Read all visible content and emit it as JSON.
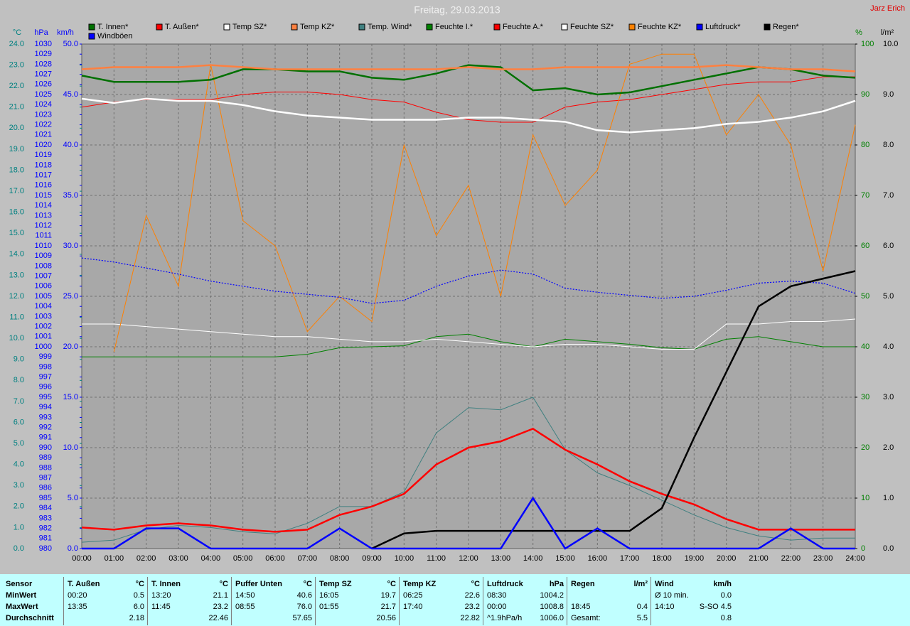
{
  "author": "Jarz Erich",
  "chart_data": {
    "type": "line",
    "title": "Freitag, 29.03.2013",
    "grid": true,
    "x": [
      "00:00",
      "01:00",
      "02:00",
      "03:00",
      "04:00",
      "05:00",
      "06:00",
      "07:00",
      "08:00",
      "09:00",
      "10:00",
      "11:00",
      "12:00",
      "13:00",
      "14:00",
      "15:00",
      "16:00",
      "17:00",
      "18:00",
      "19:00",
      "20:00",
      "21:00",
      "22:00",
      "23:00",
      "24:00"
    ],
    "axes": {
      "y": {
        "label": "°C",
        "color": "#008080",
        "lim": [
          0,
          24
        ],
        "ticks": [
          {
            "value": 0,
            "label": "0.0"
          },
          {
            "value": 1,
            "label": "1.0"
          },
          {
            "value": 2,
            "label": "2.0"
          },
          {
            "value": 3,
            "label": "3.0"
          },
          {
            "value": 4,
            "label": "4.0"
          },
          {
            "value": 5,
            "label": "5.0"
          },
          {
            "value": 6,
            "label": "6.0"
          },
          {
            "value": 7,
            "label": "7.0"
          },
          {
            "value": 8,
            "label": "8.0"
          },
          {
            "value": 9,
            "label": "9.0"
          },
          {
            "value": 10,
            "label": "10.0"
          },
          {
            "value": 11,
            "label": "11.0"
          },
          {
            "value": 12,
            "label": "12.0"
          },
          {
            "value": 13,
            "label": "13.0"
          },
          {
            "value": 14,
            "label": "14.0"
          },
          {
            "value": 15,
            "label": "15.0"
          },
          {
            "value": 16,
            "label": "16.0"
          },
          {
            "value": 17,
            "label": "17.0"
          },
          {
            "value": 18,
            "label": "18.0"
          },
          {
            "value": 19,
            "label": "19.0"
          },
          {
            "value": 20,
            "label": "20.0"
          },
          {
            "value": 21,
            "label": "21.0"
          },
          {
            "value": 22,
            "label": "22.0"
          },
          {
            "value": 23,
            "label": "23.0"
          },
          {
            "value": 24,
            "label": "24.0"
          }
        ]
      },
      "y3": {
        "label": "hPa",
        "color": "#0000ff",
        "lim": [
          980,
          1030
        ],
        "ticks": [
          980,
          981,
          982,
          983,
          984,
          985,
          986,
          987,
          988,
          989,
          990,
          991,
          992,
          993,
          994,
          995,
          996,
          997,
          998,
          999,
          1000,
          1001,
          1002,
          1003,
          1004,
          1005,
          1006,
          1007,
          1008,
          1009,
          1010,
          1011,
          1012,
          1013,
          1014,
          1015,
          1016,
          1017,
          1018,
          1019,
          1020,
          1021,
          1022,
          1023,
          1024,
          1025,
          1026,
          1027,
          1028,
          1029,
          1030
        ]
      },
      "y4": {
        "label": "km/h",
        "color": "#0000ff",
        "lim": [
          0,
          50
        ],
        "ticks": [
          {
            "value": 0,
            "label": "0.0"
          },
          {
            "value": 5,
            "label": "5.0"
          },
          {
            "value": 10,
            "label": "10.0"
          },
          {
            "value": 15,
            "label": "15.0"
          },
          {
            "value": 20,
            "label": "20.0"
          },
          {
            "value": 25,
            "label": "25.0"
          },
          {
            "value": 30,
            "label": "30.0"
          },
          {
            "value": 35,
            "label": "35.0"
          },
          {
            "value": 40,
            "label": "40.0"
          },
          {
            "value": 45,
            "label": "45.0"
          },
          {
            "value": 50,
            "label": "50.0"
          }
        ]
      },
      "y2": {
        "label": "%",
        "color": "#008000",
        "lim": [
          0,
          100
        ],
        "ticks": [
          0,
          10,
          20,
          30,
          40,
          50,
          60,
          70,
          80,
          90,
          100
        ]
      },
      "y5": {
        "label": "l/m²",
        "color": "#000000",
        "lim": [
          0,
          10
        ],
        "ticks": [
          {
            "value": 0,
            "label": "0.0"
          },
          {
            "value": 1,
            "label": "1.0"
          },
          {
            "value": 2,
            "label": "2.0"
          },
          {
            "value": 3,
            "label": "3.0"
          },
          {
            "value": 4,
            "label": "4.0"
          },
          {
            "value": 5,
            "label": "5.0"
          },
          {
            "value": 6,
            "label": "6.0"
          },
          {
            "value": 7,
            "label": "7.0"
          },
          {
            "value": 8,
            "label": "8.0"
          },
          {
            "value": 9,
            "label": "9.0"
          },
          {
            "value": 10,
            "label": "10.0"
          }
        ]
      }
    },
    "series": [
      {
        "name": "T. Innen*",
        "color": "#007000",
        "axis": "y",
        "style": "thick",
        "values": [
          22.5,
          22.2,
          22.2,
          22.2,
          22.3,
          22.8,
          22.8,
          22.7,
          22.7,
          22.4,
          22.3,
          22.6,
          23.0,
          22.9,
          21.8,
          21.9,
          21.6,
          21.7,
          22.0,
          22.3,
          22.6,
          22.9,
          22.8,
          22.5,
          22.4
        ]
      },
      {
        "name": "T. Außen*",
        "color": "#ff0000",
        "axis": "y",
        "style": "thick",
        "values": [
          1.0,
          0.9,
          1.1,
          1.2,
          1.1,
          0.9,
          0.8,
          0.9,
          1.6,
          2.0,
          2.6,
          4.0,
          4.8,
          5.1,
          5.7,
          4.7,
          4.0,
          3.2,
          2.6,
          2.1,
          1.4,
          0.9,
          0.9,
          0.9,
          0.9
        ]
      },
      {
        "name": "Temp SZ*",
        "color": "#ffffff",
        "axis": "y",
        "style": "thick",
        "values": [
          21.4,
          21.2,
          21.4,
          21.3,
          21.3,
          21.1,
          20.8,
          20.6,
          20.5,
          20.4,
          20.4,
          20.4,
          20.5,
          20.5,
          20.4,
          20.3,
          19.9,
          19.8,
          19.9,
          20.0,
          20.2,
          20.3,
          20.5,
          20.8,
          21.3
        ]
      },
      {
        "name": "Temp KZ*",
        "color": "#ff8040",
        "axis": "y",
        "style": "thick",
        "values": [
          22.8,
          22.9,
          22.9,
          22.9,
          23.0,
          22.9,
          22.8,
          22.8,
          22.8,
          22.8,
          22.8,
          22.8,
          22.9,
          22.8,
          22.8,
          22.9,
          22.9,
          22.9,
          22.9,
          22.9,
          23.0,
          22.9,
          22.8,
          22.8,
          22.7
        ]
      },
      {
        "name": "Temp. Wind*",
        "color": "#408080",
        "axis": "y",
        "style": "thin",
        "values": [
          0.3,
          0.4,
          0.9,
          1.1,
          1.0,
          0.8,
          0.7,
          1.2,
          2.0,
          2.0,
          2.7,
          5.5,
          6.7,
          6.6,
          7.2,
          4.7,
          3.6,
          3.0,
          2.3,
          1.6,
          1.0,
          0.6,
          0.4,
          0.5,
          0.5
        ]
      },
      {
        "name": "Feuchte I.*",
        "color": "#008000",
        "axis": "y2",
        "style": "thin",
        "values": [
          38,
          38,
          38,
          38,
          38,
          38,
          38,
          38.5,
          39.8,
          40,
          40.2,
          42,
          42.5,
          41,
          40,
          41.5,
          41,
          40.5,
          39.8,
          39.5,
          41.5,
          42,
          41,
          40,
          40
        ]
      },
      {
        "name": "Feuchte A.*",
        "color": "#ff0000",
        "axis": "y2",
        "style": "thin",
        "values": [
          87.5,
          88.5,
          89,
          89,
          89,
          90,
          90.5,
          90.5,
          90,
          89,
          88.5,
          86.5,
          85,
          84.5,
          84.5,
          87.5,
          88.5,
          89,
          90,
          91,
          92,
          92.5,
          92.5,
          93.5,
          93.5
        ]
      },
      {
        "name": "Feuchte SZ*",
        "color": "#ffffff",
        "axis": "y2",
        "style": "thin",
        "values": [
          44.5,
          44.5,
          44,
          43.5,
          43,
          42.5,
          42,
          42,
          41.5,
          41,
          41,
          41.5,
          41,
          40.5,
          40,
          40.5,
          40.5,
          40,
          39.5,
          39.5,
          44.5,
          44.5,
          45,
          45,
          45.5
        ]
      },
      {
        "name": "Feuchte KZ*",
        "color": "#ff8000",
        "axis": "y2",
        "style": "thin",
        "values": [
          null,
          39,
          66,
          52,
          96,
          65,
          60,
          43,
          50,
          45,
          80,
          62,
          72,
          50,
          82,
          68,
          75,
          96,
          98,
          98,
          82,
          90,
          80,
          55,
          84
        ]
      },
      {
        "name": "Luftdruck*",
        "color": "#0000ff",
        "axis": "y3",
        "style": "dotted",
        "values": [
          1008.8,
          1008.4,
          1007.8,
          1007.2,
          1006.5,
          1006.0,
          1005.5,
          1005.2,
          1004.9,
          1004.3,
          1004.6,
          1006.0,
          1007.0,
          1007.6,
          1007.2,
          1005.8,
          1005.4,
          1005.1,
          1004.8,
          1005.0,
          1005.6,
          1006.3,
          1006.5,
          1006.3,
          1005.3
        ]
      },
      {
        "name": "Regen*",
        "color": "#000000",
        "axis": "y5",
        "style": "thick",
        "values": [
          null,
          null,
          null,
          null,
          null,
          null,
          null,
          null,
          null,
          0,
          0.3,
          0.35,
          0.35,
          0.35,
          0.35,
          0.35,
          0.35,
          0.35,
          0.8,
          2.2,
          3.5,
          4.8,
          5.2,
          5.35,
          5.5
        ]
      },
      {
        "name": "Windböen",
        "color": "#0000ff",
        "axis": "y4",
        "style": "thick",
        "values": [
          0,
          0,
          2,
          2,
          0,
          0,
          0,
          0,
          2,
          0,
          0,
          0,
          0,
          0,
          5,
          0,
          2,
          0,
          0,
          0,
          0,
          0,
          2,
          0,
          0
        ]
      }
    ]
  },
  "stats": {
    "row_labels": [
      "Sensor",
      "MinWert",
      "MaxWert",
      "Durchschnitt"
    ],
    "groups": [
      {
        "name": "T. Außen",
        "unit": "°C",
        "rows": [
          [
            "00:20",
            "0.5"
          ],
          [
            "13:35",
            "6.0"
          ],
          [
            null,
            "2.18"
          ]
        ]
      },
      {
        "name": "T. Innen",
        "unit": "°C",
        "rows": [
          [
            "13:20",
            "21.1"
          ],
          [
            "11:45",
            "23.2"
          ],
          [
            null,
            "22.46"
          ]
        ]
      },
      {
        "name": "Puffer Unten",
        "unit": "°C",
        "rows": [
          [
            "14:50",
            "40.6"
          ],
          [
            "08:55",
            "76.0"
          ],
          [
            null,
            "57.65"
          ]
        ]
      },
      {
        "name": "Temp SZ",
        "unit": "°C",
        "rows": [
          [
            "16:05",
            "19.7"
          ],
          [
            "01:55",
            "21.7"
          ],
          [
            null,
            "20.56"
          ]
        ]
      },
      {
        "name": "Temp KZ",
        "unit": "°C",
        "rows": [
          [
            "06:25",
            "22.6"
          ],
          [
            "17:40",
            "23.2"
          ],
          [
            null,
            "22.82"
          ]
        ]
      },
      {
        "name": "Luftdruck",
        "unit": "hPa",
        "rows": [
          [
            "08:30",
            "1004.2"
          ],
          [
            "00:00",
            "1008.8"
          ],
          [
            "^1.9hPa/h",
            "1006.0"
          ]
        ]
      },
      {
        "name": "Regen",
        "unit": "l/m²",
        "rows": [
          [
            null,
            null
          ],
          [
            "18:45",
            "0.4"
          ],
          [
            "Gesamt:",
            "5.5"
          ]
        ]
      },
      {
        "name": "Wind",
        "unit": "km/h",
        "rows": [
          [
            "Ø 10 min.",
            "0.0"
          ],
          [
            "14:10",
            "S-SO 4.5"
          ],
          [
            null,
            "0.8"
          ]
        ]
      }
    ]
  }
}
